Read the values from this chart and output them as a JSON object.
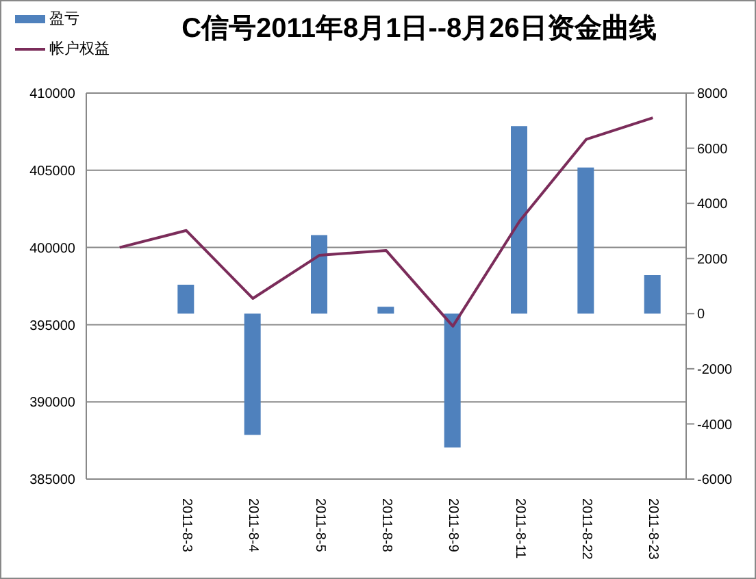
{
  "chart_data": {
    "type": "bar",
    "title": "C信号2011年8月1日--8月26日资金曲线",
    "categories": [
      null,
      "2011-8-3",
      "2011-8-4",
      "2011-8-5",
      "2011-8-8",
      "2011-8-9",
      "2011-8-11",
      "2011-8-22",
      "2011-8-23"
    ],
    "series": [
      {
        "name": "盈亏",
        "axis": "y2",
        "color": "#4f81bd",
        "values": [
          null,
          1050,
          -4400,
          2850,
          250,
          -4850,
          6800,
          5300,
          1400
        ]
      },
      {
        "name": "帐户权益",
        "type": "line",
        "color": "#7b2c5a",
        "values": [
          400000,
          401100,
          396700,
          399500,
          399800,
          394900,
          401700,
          407000,
          408400
        ]
      }
    ],
    "ylim": [
      385000,
      410000
    ],
    "yticks": [
      385000,
      390000,
      395000,
      400000,
      405000,
      410000
    ],
    "y2lim": [
      -6000,
      8000
    ],
    "y2ticks": [
      -6000,
      -4000,
      -2000,
      0,
      2000,
      4000,
      6000,
      8000
    ],
    "grid": "y",
    "legend": "top left",
    "marker": "none"
  }
}
